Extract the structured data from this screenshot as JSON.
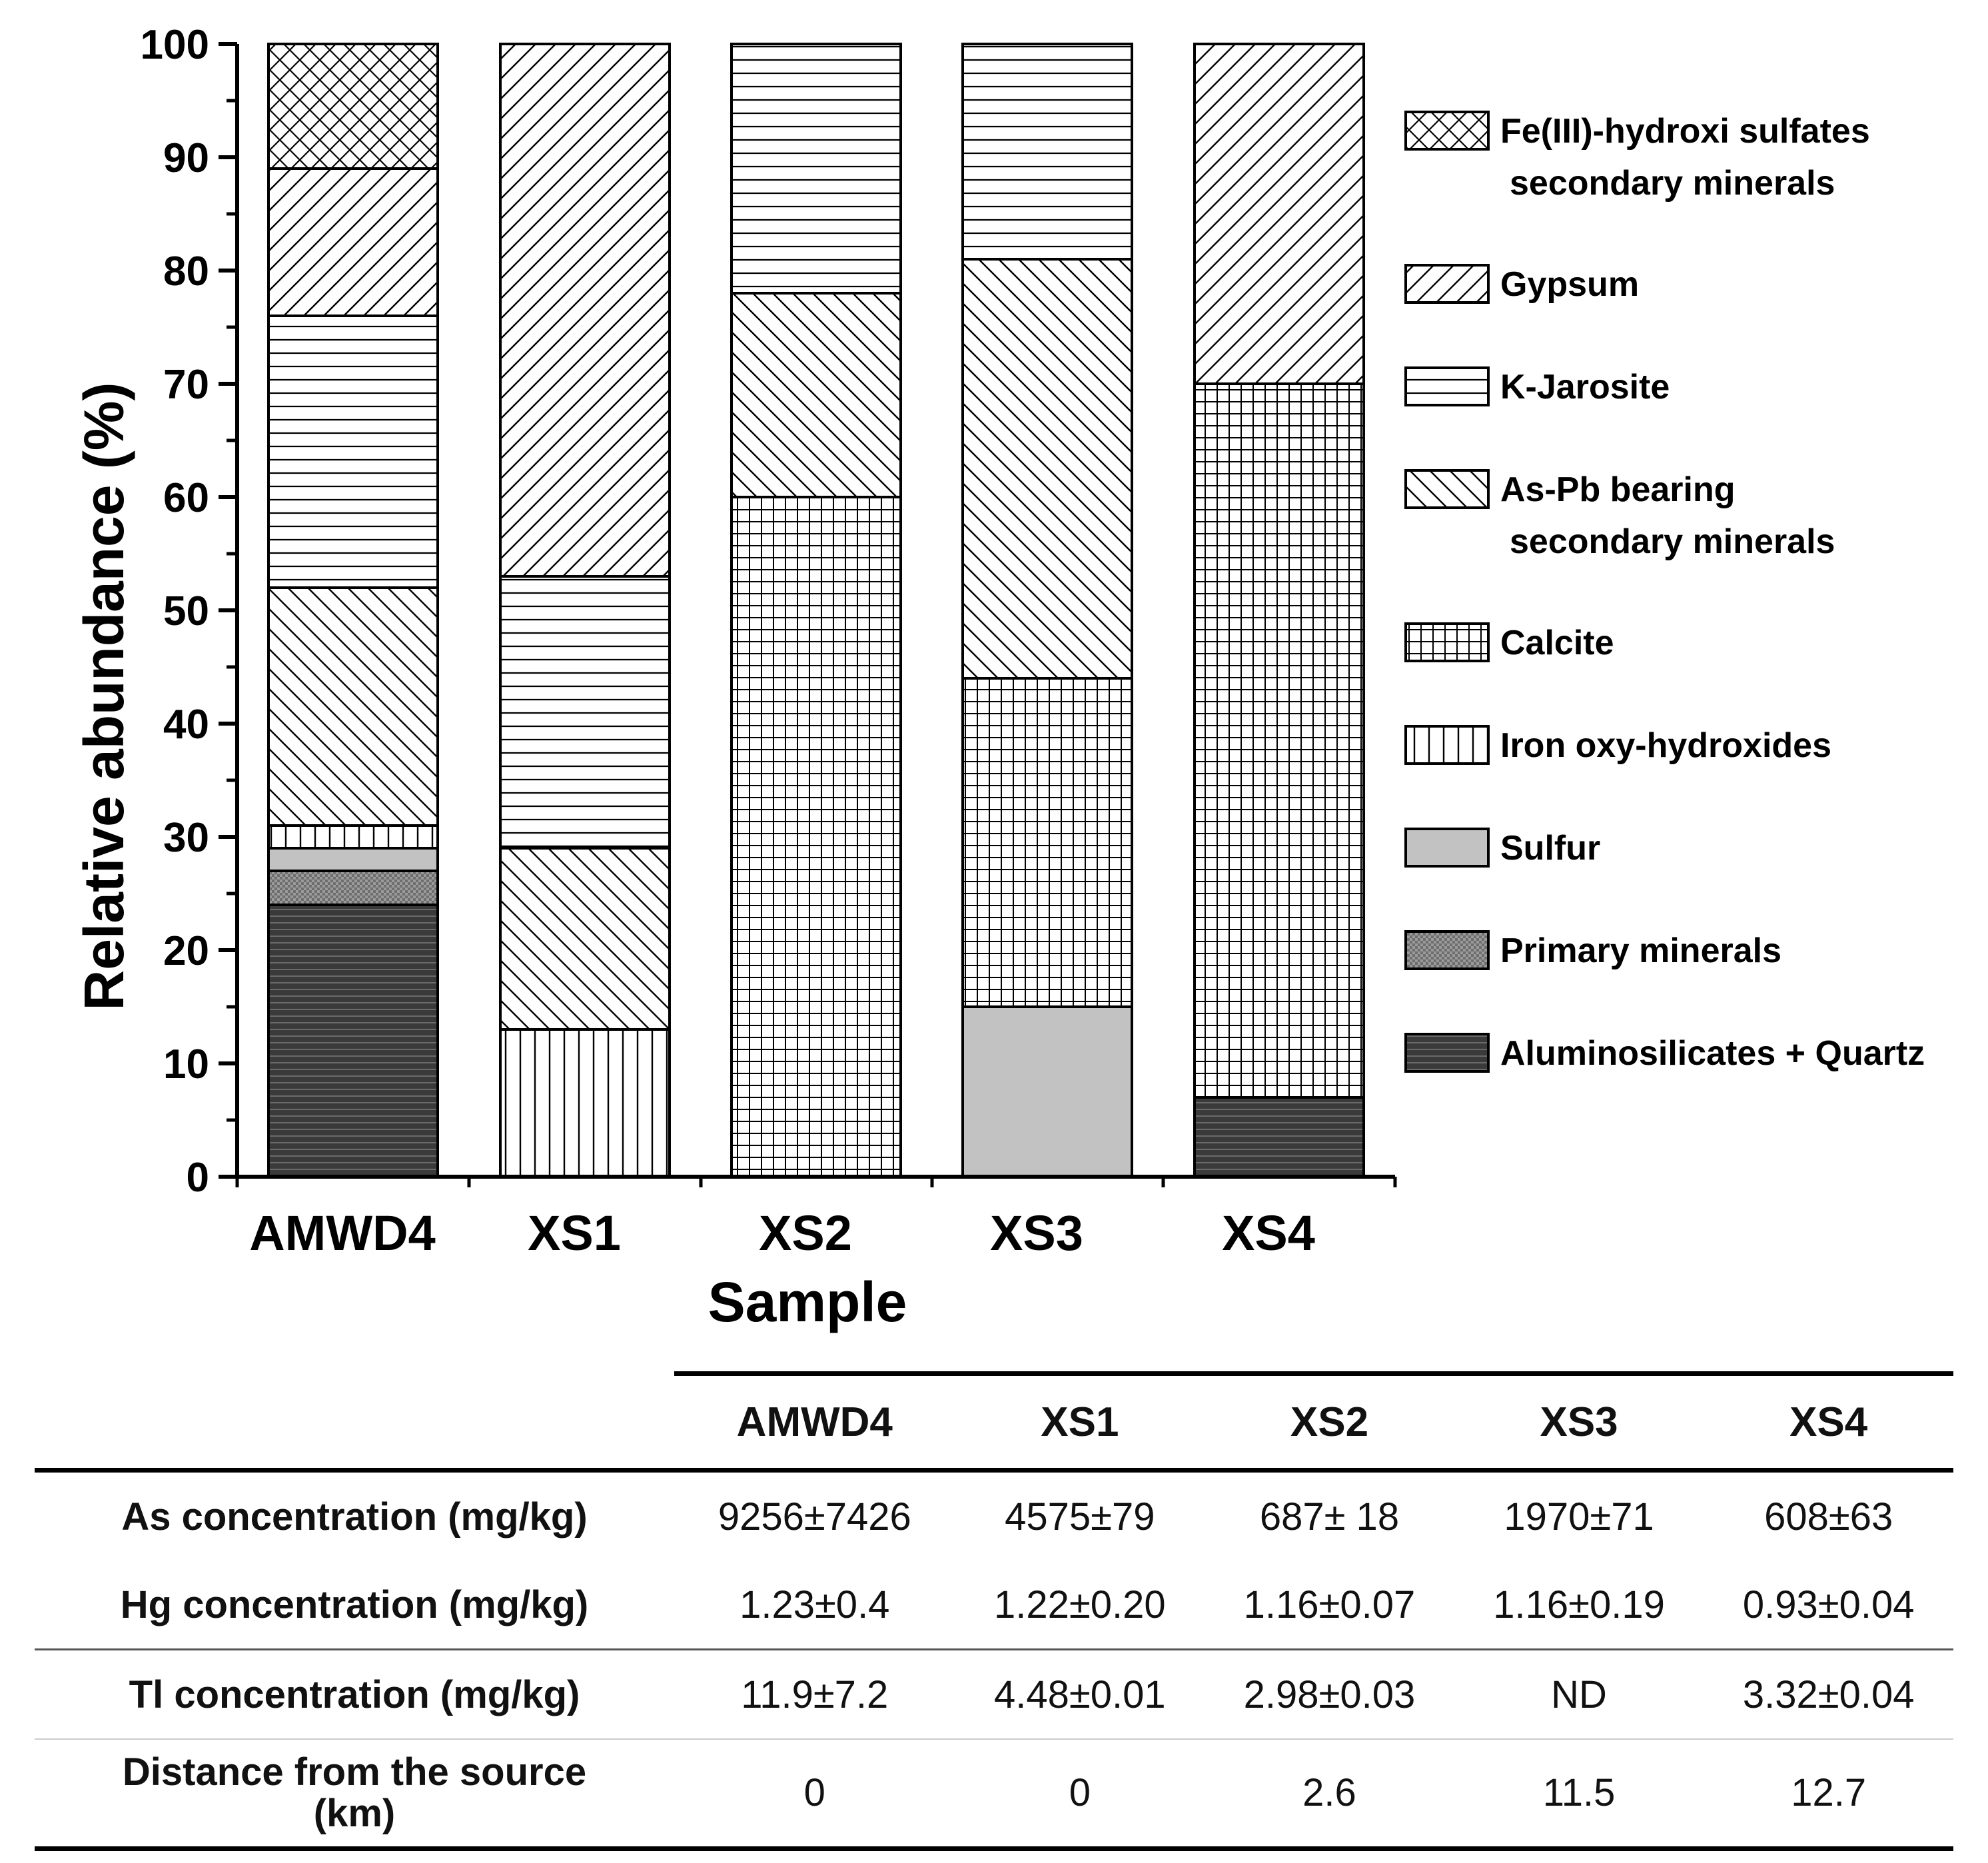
{
  "chart_data": {
    "type": "bar",
    "stacked": true,
    "title": "",
    "xlabel": "Sample",
    "ylabel": "Relative abundance (%)",
    "ylim": [
      0,
      100
    ],
    "yticks": [
      "0",
      "10",
      "20",
      "30",
      "40",
      "50",
      "60",
      "70",
      "80",
      "90",
      "100"
    ],
    "categories": [
      "AMWD4",
      "XS1",
      "XS2",
      "XS3",
      "XS4"
    ],
    "legend_position": "right",
    "series": [
      {
        "key": "alum",
        "name": "Aluminosilicates + Quartz",
        "pattern": "dark-hlines",
        "values": [
          24,
          0,
          0,
          0,
          7
        ]
      },
      {
        "key": "prim",
        "name": "Primary minerals",
        "pattern": "stipple",
        "values": [
          3,
          0,
          0,
          0,
          0
        ]
      },
      {
        "key": "sulf",
        "name": "Sulfur",
        "pattern": "solid-grey",
        "values": [
          2,
          0,
          0,
          15,
          0
        ]
      },
      {
        "key": "iron",
        "name": "Iron oxy-hydroxides",
        "pattern": "vlines",
        "values": [
          2,
          13,
          0,
          0,
          0
        ]
      },
      {
        "key": "calc",
        "name": "Calcite",
        "pattern": "grid",
        "values": [
          0,
          0,
          60,
          29,
          63
        ]
      },
      {
        "key": "aspb",
        "name": "As-Pb bearing secondary minerals",
        "pattern": "backslash",
        "values": [
          21,
          16,
          18,
          37,
          0
        ]
      },
      {
        "key": "kjar",
        "name": "K-Jarosite",
        "pattern": "hlines",
        "values": [
          24,
          24,
          22,
          19,
          0
        ]
      },
      {
        "key": "gyps",
        "name": "Gypsum",
        "pattern": "slash",
        "values": [
          13,
          47,
          0,
          0,
          30
        ]
      },
      {
        "key": "feiii",
        "name": "Fe(III)-hydroxi sulfates secondary minerals",
        "pattern": "crosshatch",
        "values": [
          11,
          0,
          0,
          0,
          0
        ]
      }
    ],
    "legend": [
      {
        "key": "feiii",
        "line1": "Fe(III)-hydroxi sulfates",
        "line2": "secondary minerals"
      },
      {
        "key": "gyps",
        "line1": "Gypsum",
        "line2": ""
      },
      {
        "key": "kjar",
        "line1": "K-Jarosite",
        "line2": ""
      },
      {
        "key": "aspb",
        "line1": "As-Pb bearing",
        "line2": "secondary minerals"
      },
      {
        "key": "calc",
        "line1": "Calcite",
        "line2": ""
      },
      {
        "key": "iron",
        "line1": "Iron oxy-hydroxides",
        "line2": ""
      },
      {
        "key": "sulf",
        "line1": "Sulfur",
        "line2": ""
      },
      {
        "key": "prim",
        "line1": "Primary minerals",
        "line2": ""
      },
      {
        "key": "alum",
        "line1": "Aluminosilicates + Quartz",
        "line2": ""
      }
    ]
  },
  "table": {
    "columns": [
      "AMWD4",
      "XS1",
      "XS2",
      "XS3",
      "XS4"
    ],
    "rows": {
      "as": {
        "label": "As concentration (mg/kg)",
        "values": [
          "9256±7426",
          "4575±79",
          "687± 18",
          "1970±71",
          "608±63"
        ]
      },
      "hg": {
        "label": "Hg concentration (mg/kg)",
        "values": [
          "1.23±0.4",
          "1.22±0.20",
          "1.16±0.07",
          "1.16±0.19",
          "0.93±0.04"
        ]
      },
      "tl": {
        "label": "Tl concentration (mg/kg)",
        "values": [
          "11.9±7.2",
          "4.48±0.01",
          "2.98±0.03",
          "ND",
          "3.32±0.04"
        ]
      },
      "dist": {
        "label_line1": "Distance from the source",
        "label_line2": "(km)",
        "values": [
          "0",
          "0",
          "2.6",
          "11.5",
          "12.7"
        ]
      }
    }
  }
}
